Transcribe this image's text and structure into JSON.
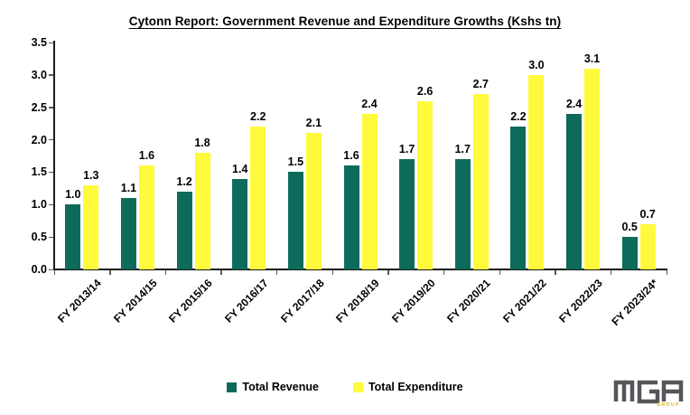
{
  "title": "Cytonn Report: Government Revenue and Expenditure Growths (Kshs tn)",
  "chart_data": {
    "type": "bar",
    "title": "Cytonn Report: Government Revenue and Expenditure Growths (Kshs tn)",
    "categories": [
      "FY 2013/14",
      "FY 2014/15",
      "FY 2015/16",
      "FY 2016/17",
      "FY 2017/18",
      "FY 2018/19",
      "FY 2019/20",
      "FY 2020/21",
      "FY 2021/22",
      "FY 2022/23",
      "FY 2023/24*"
    ],
    "series": [
      {
        "name": "Total Revenue",
        "color": "#0E6B5B",
        "values": [
          1.0,
          1.1,
          1.2,
          1.4,
          1.5,
          1.6,
          1.7,
          1.7,
          2.2,
          2.4,
          0.5
        ]
      },
      {
        "name": "Total Expenditure",
        "color": "#FFFA3C",
        "values": [
          1.3,
          1.6,
          1.8,
          2.2,
          2.1,
          2.4,
          2.6,
          2.7,
          3.0,
          3.1,
          0.7
        ]
      }
    ],
    "ylim": [
      0,
      3.5
    ],
    "yticks": [
      "0.0",
      "0.5",
      "1.0",
      "1.5",
      "2.0",
      "2.5",
      "3.0",
      "3.5"
    ],
    "grid": false,
    "data_labels": true,
    "legend_position": "bottom",
    "xlabel": "",
    "ylabel": ""
  },
  "legend": {
    "items": [
      {
        "label": "Total Revenue",
        "color": "#0E6B5B"
      },
      {
        "label": "Total Expenditure",
        "color": "#FFFA3C"
      }
    ]
  },
  "logo": {
    "text": "MGA",
    "subtext": "GROUP",
    "letter_color": "#55565A",
    "accent_color": "#D9B016"
  }
}
